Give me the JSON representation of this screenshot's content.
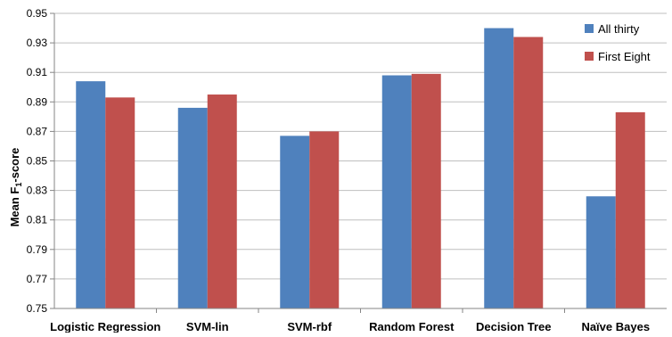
{
  "chart_data": {
    "type": "bar",
    "title": "",
    "xlabel": "",
    "ylabel": {
      "main": "Mean F",
      "subscript": "1",
      "suffix": "-score"
    },
    "ylim": [
      0.75,
      0.95
    ],
    "yticks": [
      "0.95",
      "0.93",
      "0.91",
      "0.89",
      "0.87",
      "0.85",
      "0.83",
      "0.81",
      "0.79",
      "0.77",
      "0.75"
    ],
    "grid": true,
    "legend_position": "top-right",
    "categories": [
      "Logistic Regression",
      "SVM-lin",
      "SVM-rbf",
      "Random Forest",
      "Decision Tree",
      "Naïve Bayes"
    ],
    "series": [
      {
        "name": "All thirty",
        "color": "#4f81bd",
        "values": [
          0.904,
          0.886,
          0.867,
          0.908,
          0.94,
          0.826
        ]
      },
      {
        "name": "First Eight",
        "color": "#c0504d",
        "values": [
          0.893,
          0.895,
          0.87,
          0.909,
          0.934,
          0.883
        ]
      }
    ]
  }
}
